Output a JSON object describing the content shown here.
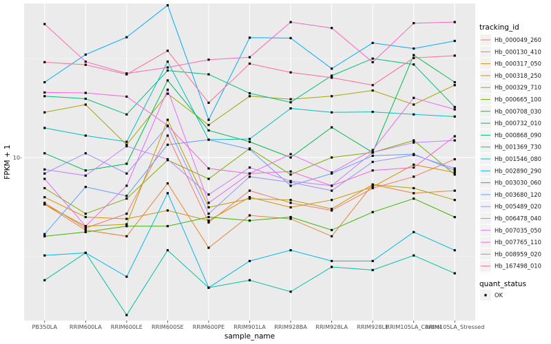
{
  "chart_data": {
    "type": "line",
    "xlabel": "sample_name",
    "ylabel": "FPKM + 1",
    "y_scale": "log10",
    "ylim": [
      1.5,
      60
    ],
    "grid": true,
    "legend_position": "right",
    "categories": [
      "PB350LA",
      "RRIM600LA",
      "RRIM600LE",
      "RRIM600SE",
      "RRIM600PE",
      "RRIM901LA",
      "RRIM928BA",
      "RRIM928LA",
      "RRIM928LE",
      "RRIM105LA_Control",
      "RRIM105LA_Stressed"
    ],
    "y_ticks": [
      {
        "value": 10,
        "label": "10-"
      }
    ],
    "legend": {
      "title": "tracking_id",
      "quant_title": "quant_status",
      "quant_label": "OK"
    },
    "series": [
      {
        "name": "Hb_000049_260",
        "color": "#F8766D",
        "values": [
          5.9,
          4.4,
          5.2,
          12.9,
          4.7,
          6.8,
          5.9,
          5.4,
          7.0,
          8.0,
          9.8
        ]
      },
      {
        "name": "Hb_000130_410",
        "color": "#EA8331",
        "values": [
          5.8,
          4.3,
          4.0,
          7.4,
          3.5,
          5.1,
          4.9,
          4.0,
          7.3,
          6.6,
          6.8
        ]
      },
      {
        "name": "Hb_000317_050",
        "color": "#D89000",
        "values": [
          6.3,
          5.0,
          4.9,
          5.4,
          4.8,
          6.3,
          5.6,
          6.1,
          7.1,
          9.2,
          8.4
        ]
      },
      {
        "name": "Hb_000318_250",
        "color": "#C09B00",
        "values": [
          5.8,
          4.5,
          4.6,
          15.5,
          5.6,
          6.2,
          6.1,
          5.5,
          7.3,
          7.0,
          6.1
        ]
      },
      {
        "name": "Hb_000329_710",
        "color": "#A3A500",
        "values": [
          16.9,
          18.5,
          11.6,
          21.0,
          14.6,
          20.4,
          19.7,
          20.4,
          21.8,
          18.5,
          23.2
        ]
      },
      {
        "name": "Hb_000665_100",
        "color": "#7CAE00",
        "values": [
          7.0,
          5.2,
          6.2,
          9.7,
          7.8,
          11.1,
          8.2,
          10.0,
          10.6,
          12.2,
          8.2
        ]
      },
      {
        "name": "Hb_000708_030",
        "color": "#39B600",
        "values": [
          4.0,
          4.2,
          4.5,
          4.5,
          5.0,
          4.8,
          5.0,
          4.3,
          5.3,
          6.2,
          5.0
        ]
      },
      {
        "name": "Hb_000732_010",
        "color": "#00BB4E",
        "values": [
          10.5,
          8.6,
          9.3,
          24.5,
          13.7,
          12.0,
          10.0,
          14.2,
          10.6,
          32.9,
          24.0
        ]
      },
      {
        "name": "Hb_000868_090",
        "color": "#00BF7D",
        "values": [
          20.4,
          19.8,
          16.5,
          27.5,
          26.3,
          21.1,
          19.0,
          25.9,
          31.6,
          29.5,
          18.0
        ]
      },
      {
        "name": "Hb_001369_730",
        "color": "#00C1A3",
        "values": [
          2.4,
          3.3,
          1.6,
          3.4,
          2.2,
          2.4,
          2.1,
          2.8,
          2.7,
          3.2,
          2.6
        ]
      },
      {
        "name": "Hb_001546_080",
        "color": "#00BFC4",
        "values": [
          14.1,
          12.9,
          12.0,
          30.5,
          12.3,
          12.4,
          17.7,
          16.9,
          17.0,
          16.5,
          16.1
        ]
      },
      {
        "name": "Hb_002890_290",
        "color": "#00B8E7",
        "values": [
          3.2,
          3.3,
          2.5,
          6.6,
          2.2,
          3.0,
          3.4,
          3.0,
          3.0,
          4.2,
          3.4
        ]
      },
      {
        "name": "Hb_003030_060",
        "color": "#00A9FF",
        "values": [
          24.0,
          33.1,
          40.5,
          58.7,
          15.5,
          40.3,
          40.1,
          28.1,
          37.9,
          35.5,
          38.8
        ]
      },
      {
        "name": "Hb_003680_120",
        "color": "#619CFF",
        "values": [
          4.1,
          7.1,
          6.4,
          11.6,
          12.3,
          11.0,
          7.2,
          8.3,
          10.2,
          10.4,
          8.6
        ]
      },
      {
        "name": "Hb_005489_020",
        "color": "#9590FF",
        "values": [
          8.3,
          10.5,
          8.3,
          14.4,
          5.2,
          8.0,
          7.5,
          6.8,
          9.5,
          10.3,
          8.8
        ]
      },
      {
        "name": "Hb_006478_040",
        "color": "#C77CFF",
        "values": [
          8.7,
          8.1,
          11.4,
          9.8,
          6.5,
          8.9,
          7.6,
          7.2,
          10.6,
          11.9,
          12.2
        ]
      },
      {
        "name": "Hb_007035_050",
        "color": "#E76BF3",
        "values": [
          7.8,
          4.5,
          7.2,
          22.0,
          5.9,
          8.3,
          10.4,
          8.4,
          10.9,
          20.0,
          17.5
        ]
      },
      {
        "name": "Hb_007765_110",
        "color": "#FA62DB",
        "values": [
          21.3,
          21.2,
          20.3,
          14.5,
          8.8,
          8.3,
          8.5,
          7.2,
          8.6,
          8.9,
          12.8
        ]
      },
      {
        "name": "Hb_008959_020",
        "color": "#FF62BC",
        "values": [
          47.2,
          30.5,
          26.6,
          28.5,
          31.2,
          32.1,
          48.3,
          45.1,
          30.3,
          47.7,
          48.3
        ]
      },
      {
        "name": "Hb_167498_010",
        "color": "#FF6C91",
        "values": [
          30.3,
          29.4,
          26.3,
          34.6,
          18.9,
          29.8,
          26.9,
          25.3,
          23.2,
          31.8,
          32.7
        ]
      }
    ]
  }
}
